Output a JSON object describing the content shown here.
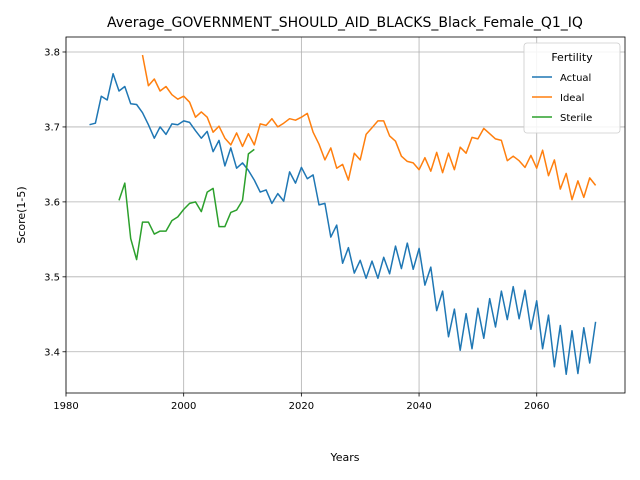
{
  "chart_data": {
    "type": "line",
    "title": "Average_GOVERNMENT_SHOULD_AID_BLACKS_Black_Female_Q1_IQ",
    "xlabel": "Years",
    "ylabel": "Score(1-5)",
    "xlim": [
      1980,
      2075
    ],
    "ylim": [
      3.345,
      3.82
    ],
    "xticks": [
      1980,
      2000,
      2020,
      2040,
      2060
    ],
    "yticks": [
      3.4,
      3.5,
      3.6,
      3.7,
      3.8
    ],
    "grid": true,
    "legend": {
      "title": "Fertility",
      "position": "top-right"
    },
    "series": [
      {
        "name": "Actual",
        "color": "#1f77b4",
        "x": [
          1984,
          1985,
          1986,
          1987,
          1988,
          1989,
          1990,
          1991,
          1992,
          1993,
          1994,
          1995,
          1996,
          1997,
          1998,
          1999,
          2000,
          2001,
          2002,
          2003,
          2004,
          2005,
          2006,
          2007,
          2008,
          2009,
          2010,
          2011,
          2012,
          2013,
          2014,
          2015,
          2016,
          2017,
          2018,
          2019,
          2020,
          2021,
          2022,
          2023,
          2024,
          2025,
          2026,
          2027,
          2028,
          2029,
          2030,
          2031,
          2032,
          2033,
          2034,
          2035,
          2036,
          2037,
          2038,
          2039,
          2040,
          2041,
          2042,
          2043,
          2044,
          2045,
          2046,
          2047,
          2048,
          2049,
          2050,
          2051,
          2052,
          2053,
          2054,
          2055,
          2056,
          2057,
          2058,
          2059,
          2060,
          2061,
          2062,
          2063,
          2064,
          2065,
          2066,
          2067,
          2068,
          2069,
          2070
        ],
        "y": [
          3.703,
          3.705,
          3.741,
          3.736,
          3.771,
          3.748,
          3.754,
          3.731,
          3.73,
          3.719,
          3.703,
          3.685,
          3.7,
          3.69,
          3.704,
          3.703,
          3.708,
          3.706,
          3.695,
          3.685,
          3.694,
          3.667,
          3.682,
          3.648,
          3.672,
          3.645,
          3.652,
          3.642,
          3.629,
          3.613,
          3.616,
          3.598,
          3.611,
          3.601,
          3.64,
          3.625,
          3.646,
          3.631,
          3.636,
          3.596,
          3.598,
          3.553,
          3.569,
          3.518,
          3.539,
          3.505,
          3.522,
          3.498,
          3.521,
          3.498,
          3.526,
          3.504,
          3.541,
          3.511,
          3.545,
          3.51,
          3.538,
          3.489,
          3.513,
          3.455,
          3.481,
          3.42,
          3.457,
          3.402,
          3.451,
          3.404,
          3.458,
          3.418,
          3.471,
          3.433,
          3.481,
          3.443,
          3.487,
          3.444,
          3.482,
          3.43,
          3.468,
          3.404,
          3.449,
          3.38,
          3.435,
          3.37,
          3.428,
          3.371,
          3.432,
          3.385,
          3.44
        ]
      },
      {
        "name": "Ideal",
        "color": "#ff7f0e",
        "x": [
          1993,
          1994,
          1995,
          1996,
          1997,
          1998,
          1999,
          2000,
          2001,
          2002,
          2003,
          2004,
          2005,
          2006,
          2007,
          2008,
          2009,
          2010,
          2011,
          2012,
          2013,
          2014,
          2015,
          2016,
          2017,
          2018,
          2019,
          2020,
          2021,
          2022,
          2023,
          2024,
          2025,
          2026,
          2027,
          2028,
          2029,
          2030,
          2031,
          2032,
          2033,
          2034,
          2035,
          2036,
          2037,
          2038,
          2039,
          2040,
          2041,
          2042,
          2043,
          2044,
          2045,
          2046,
          2047,
          2048,
          2049,
          2050,
          2051,
          2052,
          2053,
          2054,
          2055,
          2056,
          2057,
          2058,
          2059,
          2060,
          2061,
          2062,
          2063,
          2064,
          2065,
          2066,
          2067,
          2068,
          2069,
          2070
        ],
        "y": [
          3.796,
          3.755,
          3.764,
          3.748,
          3.754,
          3.743,
          3.737,
          3.741,
          3.733,
          3.713,
          3.72,
          3.713,
          3.693,
          3.701,
          3.685,
          3.676,
          3.692,
          3.674,
          3.691,
          3.676,
          3.704,
          3.702,
          3.711,
          3.7,
          3.705,
          3.711,
          3.709,
          3.713,
          3.718,
          3.693,
          3.677,
          3.656,
          3.672,
          3.645,
          3.65,
          3.629,
          3.665,
          3.656,
          3.69,
          3.699,
          3.708,
          3.708,
          3.688,
          3.681,
          3.661,
          3.654,
          3.652,
          3.643,
          3.659,
          3.641,
          3.666,
          3.639,
          3.665,
          3.643,
          3.673,
          3.665,
          3.686,
          3.684,
          3.698,
          3.691,
          3.684,
          3.682,
          3.655,
          3.661,
          3.655,
          3.646,
          3.662,
          3.645,
          3.669,
          3.635,
          3.656,
          3.617,
          3.638,
          3.603,
          3.628,
          3.606,
          3.632,
          3.622
        ]
      },
      {
        "name": "Sterile",
        "color": "#2ca02c",
        "x": [
          1989,
          1990,
          1991,
          1992,
          1993,
          1994,
          1995,
          1996,
          1997,
          1998,
          1999,
          2000,
          2001,
          2002,
          2003,
          2004,
          2005,
          2006,
          2007,
          2008,
          2009,
          2010,
          2011,
          2012
        ],
        "y": [
          3.602,
          3.625,
          3.551,
          3.523,
          3.573,
          3.573,
          3.557,
          3.561,
          3.561,
          3.575,
          3.58,
          3.59,
          3.598,
          3.6,
          3.587,
          3.613,
          3.618,
          3.567,
          3.567,
          3.586,
          3.589,
          3.602,
          3.664,
          3.67
        ]
      }
    ]
  }
}
